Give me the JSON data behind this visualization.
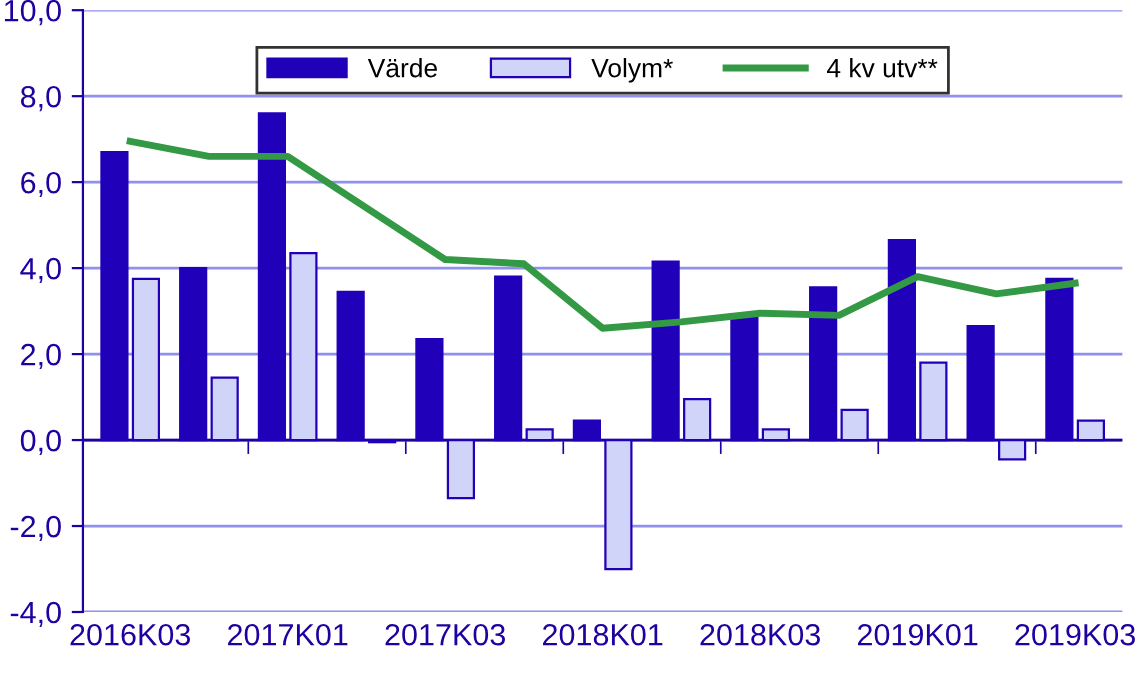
{
  "chart_data": {
    "type": "bar",
    "categories": [
      "2016K03",
      null,
      "2017K01",
      null,
      "2017K03",
      null,
      "2018K01",
      null,
      "2018K03",
      null,
      "2019K01",
      null,
      "2019K03"
    ],
    "series": [
      {
        "name": "Värde",
        "color": "#2000b8",
        "values": [
          6.7,
          4.0,
          7.6,
          3.45,
          2.35,
          3.8,
          0.45,
          4.15,
          2.9,
          3.55,
          4.65,
          2.65,
          3.75
        ]
      },
      {
        "name": "Volym*",
        "color": "#d0d4f8",
        "values": [
          3.75,
          1.45,
          4.35,
          -0.05,
          -1.35,
          0.25,
          -3.0,
          0.95,
          0.25,
          0.7,
          1.8,
          -0.45,
          0.45
        ]
      },
      {
        "name": "4 kv utv**",
        "type": "line",
        "color": "#339944",
        "values": [
          6.95,
          6.6,
          6.6,
          5.4,
          4.2,
          4.1,
          2.6,
          2.75,
          2.95,
          2.9,
          3.8,
          3.4,
          3.65
        ]
      }
    ],
    "ylim": [
      -4,
      10
    ],
    "yticks": [
      {
        "value": -4,
        "label": "-4,0"
      },
      {
        "value": -2,
        "label": "-2,0"
      },
      {
        "value": 0,
        "label": "0,0"
      },
      {
        "value": 2,
        "label": "2,0"
      },
      {
        "value": 4,
        "label": "4,0"
      },
      {
        "value": 6,
        "label": "6,0"
      },
      {
        "value": 8,
        "label": "8,0"
      },
      {
        "value": 10,
        "label": "10,0"
      }
    ],
    "ref_lines": [
      {
        "axis": "y",
        "value": 0,
        "color": "#2000a0"
      }
    ],
    "grid": "y",
    "legend": "top"
  }
}
